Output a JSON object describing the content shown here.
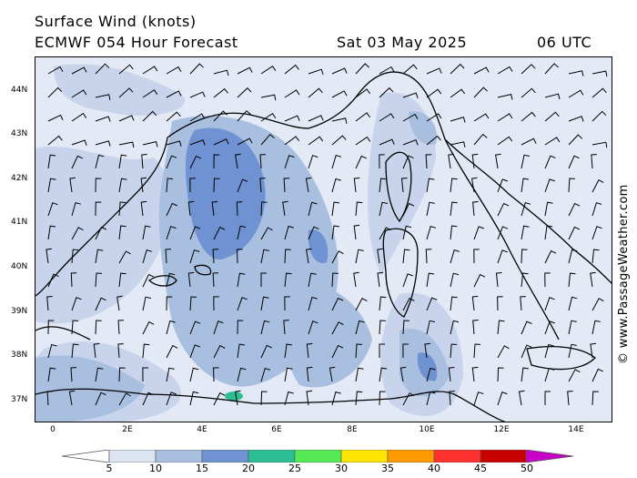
{
  "header": {
    "title_line1": "Surface Wind (knots)",
    "title_line2": "ECMWF 054 Hour Forecast",
    "date": "Sat 03 May 2025",
    "time": "06 UTC"
  },
  "watermark": "© www.PassageWeather.com",
  "lat_labels": [
    "44N",
    "43N",
    "42N",
    "41N",
    "40N",
    "39N",
    "38N",
    "37N"
  ],
  "lon_labels": [
    "0",
    "2E",
    "4E",
    "6E",
    "8E",
    "10E",
    "12E",
    "14E"
  ],
  "legend": {
    "labels": [
      "5",
      "10",
      "15",
      "20",
      "25",
      "30",
      "35",
      "40",
      "45",
      "50"
    ],
    "colors": [
      "#dde5f3",
      "#a9bfe0",
      "#6f93d2",
      "#2dbf94",
      "#55ea55",
      "#ffe600",
      "#ff9a00",
      "#ff3030",
      "#c80000",
      "#c800c8"
    ],
    "ocean_color": "#f4f6fb",
    "low_color": "#ffffff"
  }
}
